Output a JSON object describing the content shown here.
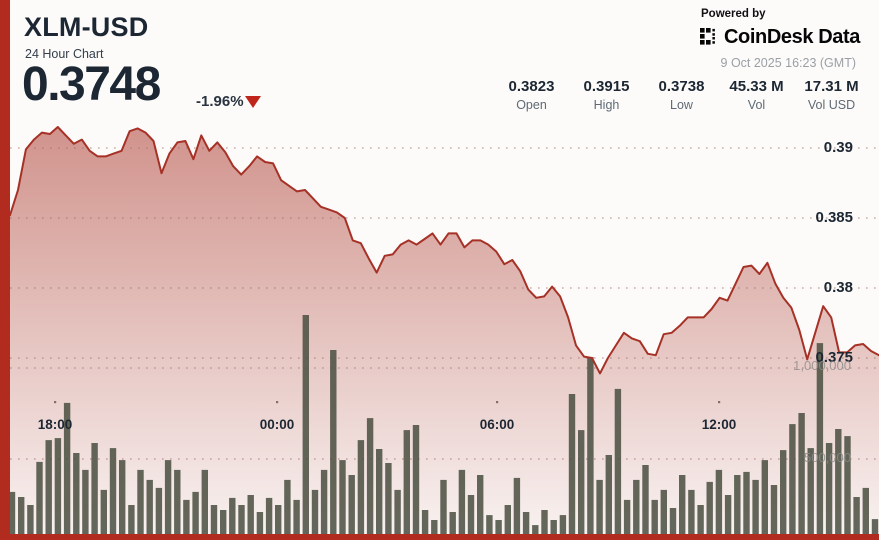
{
  "header": {
    "symbol": "XLM-USD",
    "subtitle": "24 Hour Chart",
    "price": "0.3748",
    "change_pct": "-1.96%",
    "change_direction": "down",
    "powered_by": "Powered by",
    "brand": "CoinDesk Data",
    "timestamp": "9 Oct 2025 16:23 (GMT)"
  },
  "stats": [
    {
      "value": "0.3823",
      "label": "Open"
    },
    {
      "value": "0.3915",
      "label": "High"
    },
    {
      "value": "0.3738",
      "label": "Low"
    },
    {
      "value": "45.33 M",
      "label": "Vol"
    },
    {
      "value": "17.31 M",
      "label": "Vol USD"
    }
  ],
  "colors": {
    "accent_red": "#b12b1e",
    "line_red": "#a63126",
    "fill_red": "#a93226",
    "dark_navy": "#1c2733",
    "volume_bar": "rgba(73,78,63,0.85)",
    "grid_dot": "rgba(155,110,100,0.55)",
    "triangle_red": "#c0251c"
  },
  "chart_data": {
    "type": "line+bar",
    "title": "XLM-USD 24 Hour Chart",
    "legend": "none",
    "grid": "dotted-horizontal",
    "open": 0.3823,
    "high": 0.3915,
    "low": 0.3738,
    "last": 0.3748,
    "change_pct": -1.96,
    "price_axis": {
      "side": "right",
      "tick_values": [
        0.39,
        0.385,
        0.38,
        0.375
      ],
      "tick_labels": [
        "0.39",
        "0.385",
        "0.38",
        "0.375"
      ]
    },
    "volume_axis": {
      "tick_values": [
        1000000,
        500000
      ],
      "tick_labels": [
        "1,000,000",
        "500,000"
      ]
    },
    "time_axis": {
      "ticks": [
        "18:00",
        "00:00",
        "06:00",
        "12:00"
      ]
    },
    "price_series": [
      0.3852,
      0.387,
      0.3899,
      0.3906,
      0.3911,
      0.391,
      0.3915,
      0.3909,
      0.3903,
      0.3906,
      0.3898,
      0.3894,
      0.3894,
      0.3896,
      0.3898,
      0.3912,
      0.3914,
      0.3911,
      0.3905,
      0.3882,
      0.3896,
      0.3904,
      0.3905,
      0.3892,
      0.3909,
      0.3898,
      0.3904,
      0.3897,
      0.3887,
      0.3881,
      0.3887,
      0.3894,
      0.389,
      0.3889,
      0.3877,
      0.3873,
      0.3869,
      0.387,
      0.3864,
      0.3858,
      0.3856,
      0.3854,
      0.385,
      0.3834,
      0.3832,
      0.3821,
      0.3811,
      0.3823,
      0.3824,
      0.3831,
      0.3834,
      0.3831,
      0.3835,
      0.3839,
      0.3831,
      0.3839,
      0.3839,
      0.3829,
      0.3834,
      0.3834,
      0.3831,
      0.3826,
      0.3817,
      0.382,
      0.3812,
      0.3799,
      0.3793,
      0.3794,
      0.3801,
      0.3794,
      0.3779,
      0.3759,
      0.3751,
      0.375,
      0.3739,
      0.375,
      0.3759,
      0.3768,
      0.3764,
      0.3762,
      0.3753,
      0.3752,
      0.3767,
      0.3768,
      0.3773,
      0.3779,
      0.3779,
      0.3779,
      0.3785,
      0.3793,
      0.3791,
      0.3803,
      0.3815,
      0.3816,
      0.381,
      0.3818,
      0.3803,
      0.3793,
      0.3786,
      0.377,
      0.3749,
      0.3768,
      0.3787,
      0.3779,
      0.3754,
      0.3754,
      0.3759,
      0.376,
      0.3755,
      0.3752
    ],
    "volume_series": [
      319000,
      291000,
      247000,
      484000,
      604000,
      615000,
      808000,
      533000,
      440000,
      588000,
      330000,
      560000,
      494000,
      247000,
      440000,
      385000,
      341000,
      494000,
      440000,
      275000,
      319000,
      440000,
      247000,
      220000,
      286000,
      247000,
      302000,
      209000,
      286000,
      247000,
      385000,
      275000,
      1291000,
      330000,
      440000,
      1099000,
      494000,
      412000,
      604000,
      725000,
      555000,
      478000,
      330000,
      659000,
      687000,
      220000,
      165000,
      385000,
      209000,
      440000,
      302000,
      412000,
      192000,
      165000,
      247000,
      396000,
      209000,
      137000,
      220000,
      165000,
      192000,
      857000,
      659000,
      1060000,
      385000,
      522000,
      885000,
      275000,
      385000,
      467000,
      275000,
      330000,
      231000,
      412000,
      330000,
      247000,
      374000,
      440000,
      302000,
      412000,
      429000,
      385000,
      494000,
      357000,
      549000,
      692000,
      753000,
      560000,
      1137000,
      588000,
      665000,
      626000,
      291000,
      341000,
      170000
    ]
  }
}
